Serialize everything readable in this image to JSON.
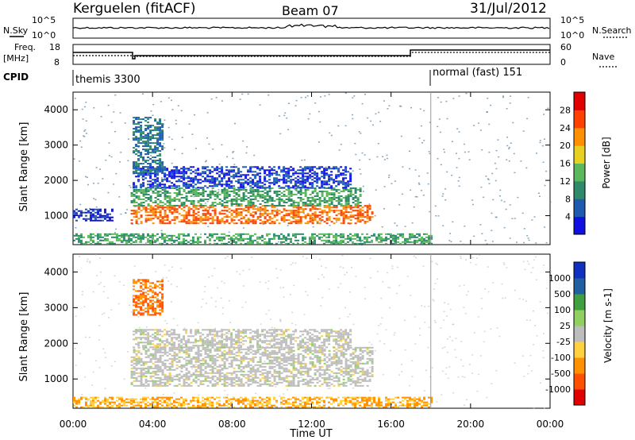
{
  "header": {
    "site": "Kerguelen (fitACF)",
    "beam": "Beam 07",
    "date": "31/Jul/2012"
  },
  "labels": {
    "nsky": "N.Sky",
    "nsearch": "N.Search",
    "freq": "Freq.",
    "mhz": "[MHz]",
    "nave": "Nave",
    "cpid": "CPID",
    "cpid1": "themis 3300",
    "cpid2": "normal (fast) 151",
    "yaxis": "Slant Range [km]",
    "xaxis": "Time UT",
    "power_label": "Power [dB]",
    "velocity_label": "Velocity [m s-1]"
  },
  "noise_panel": {
    "left_ticks": [
      "10^5",
      "10^0"
    ],
    "right_ticks": [
      "10^5",
      "10^0"
    ]
  },
  "freq_panel": {
    "left_ticks": [
      "18",
      "8"
    ],
    "right_ticks": [
      "60",
      "0"
    ]
  },
  "chart_data": [
    {
      "type": "heatmap",
      "panel": "power",
      "xlabel": "Time UT",
      "ylabel": "Slant Range [km]",
      "x_ticks": [
        "00:00",
        "04:00",
        "08:00",
        "12:00",
        "16:00",
        "20:00",
        "00:00"
      ],
      "xlim_hours": [
        0,
        24
      ],
      "y_ticks": [
        1000,
        2000,
        3000,
        4000
      ],
      "ylim": [
        180,
        4500
      ],
      "colorbar": {
        "label": "Power [dB]",
        "ticks": [
          4,
          8,
          12,
          16,
          20,
          24,
          28
        ],
        "colors": [
          "#1010e0",
          "#1e5ab0",
          "#2e8a6a",
          "#5cb85c",
          "#e8d020",
          "#ff9000",
          "#ff4000",
          "#e00000"
        ]
      },
      "regions": [
        {
          "t0": 2.9,
          "t1": 15.0,
          "r_lo": 800,
          "r_hi": 1300,
          "level": 24
        },
        {
          "t0": 2.9,
          "t1": 14.5,
          "r_lo": 1300,
          "r_hi": 1800,
          "level": 12
        },
        {
          "t0": 3.0,
          "t1": 14.0,
          "r_lo": 1800,
          "r_hi": 2400,
          "level": 4
        },
        {
          "t0": 3.0,
          "t1": 4.5,
          "r_lo": 2200,
          "r_hi": 3800,
          "level": 8
        },
        {
          "t0": 0.0,
          "t1": 2.0,
          "r_lo": 850,
          "r_hi": 1200,
          "level": 4
        },
        {
          "t0": 0.0,
          "t1": 18.0,
          "r_lo": 200,
          "r_hi": 500,
          "level": 12
        }
      ]
    },
    {
      "type": "heatmap",
      "panel": "velocity",
      "xlabel": "Time UT",
      "ylabel": "Slant Range [km]",
      "x_ticks": [
        "00:00",
        "04:00",
        "08:00",
        "12:00",
        "16:00",
        "20:00",
        "00:00"
      ],
      "xlim_hours": [
        0,
        24
      ],
      "y_ticks": [
        1000,
        2000,
        3000,
        4000
      ],
      "ylim": [
        180,
        4500
      ],
      "colorbar": {
        "label": "Velocity [m s-1]",
        "ticks": [
          1000,
          500,
          100,
          25,
          -25,
          -100,
          -500,
          -1000
        ],
        "colors": [
          "#1030c0",
          "#2060a0",
          "#40a040",
          "#90d060",
          "#bdbdbd",
          "#ffd040",
          "#ff9000",
          "#ff5000",
          "#e00000"
        ]
      },
      "regions": [
        {
          "t0": 2.9,
          "t1": 15.0,
          "r_lo": 800,
          "r_hi": 1900,
          "level": 0
        },
        {
          "t0": 3.0,
          "t1": 14.0,
          "r_lo": 1900,
          "r_hi": 2400,
          "level": 0
        },
        {
          "t0": 3.0,
          "t1": 4.5,
          "r_lo": 2800,
          "r_hi": 3800,
          "level": -500
        },
        {
          "t0": 0.0,
          "t1": 18.0,
          "r_lo": 200,
          "r_hi": 500,
          "level": -100
        }
      ]
    }
  ]
}
